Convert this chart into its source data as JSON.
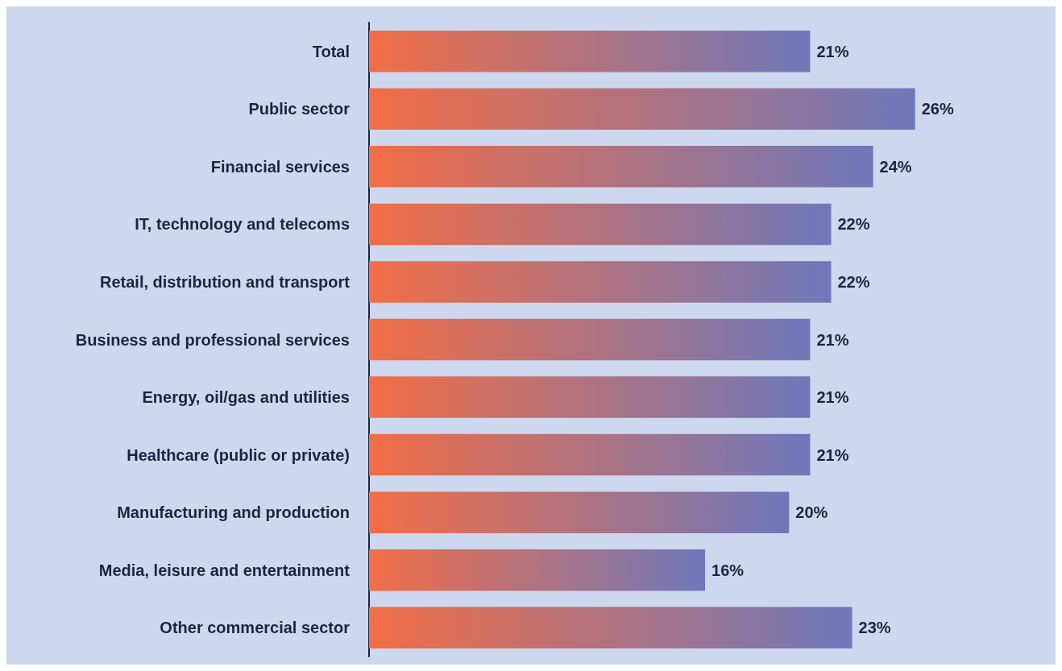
{
  "chart_data": {
    "type": "bar",
    "orientation": "horizontal",
    "categories": [
      "Total",
      "Public sector",
      "Financial services",
      "IT, technology and telecoms",
      "Retail, distribution and transport",
      "Business and professional services",
      "Energy, oil/gas and utilities",
      "Healthcare (public or private)",
      "Manufacturing and production",
      "Media, leisure and entertainment",
      "Other commercial sector"
    ],
    "values": [
      21,
      26,
      24,
      22,
      22,
      21,
      21,
      21,
      20,
      16,
      23
    ],
    "value_labels": [
      "21%",
      "26%",
      "24%",
      "22%",
      "22%",
      "21%",
      "21%",
      "21%",
      "20%",
      "16%",
      "23%"
    ],
    "color": "#6e78bb"
  }
}
